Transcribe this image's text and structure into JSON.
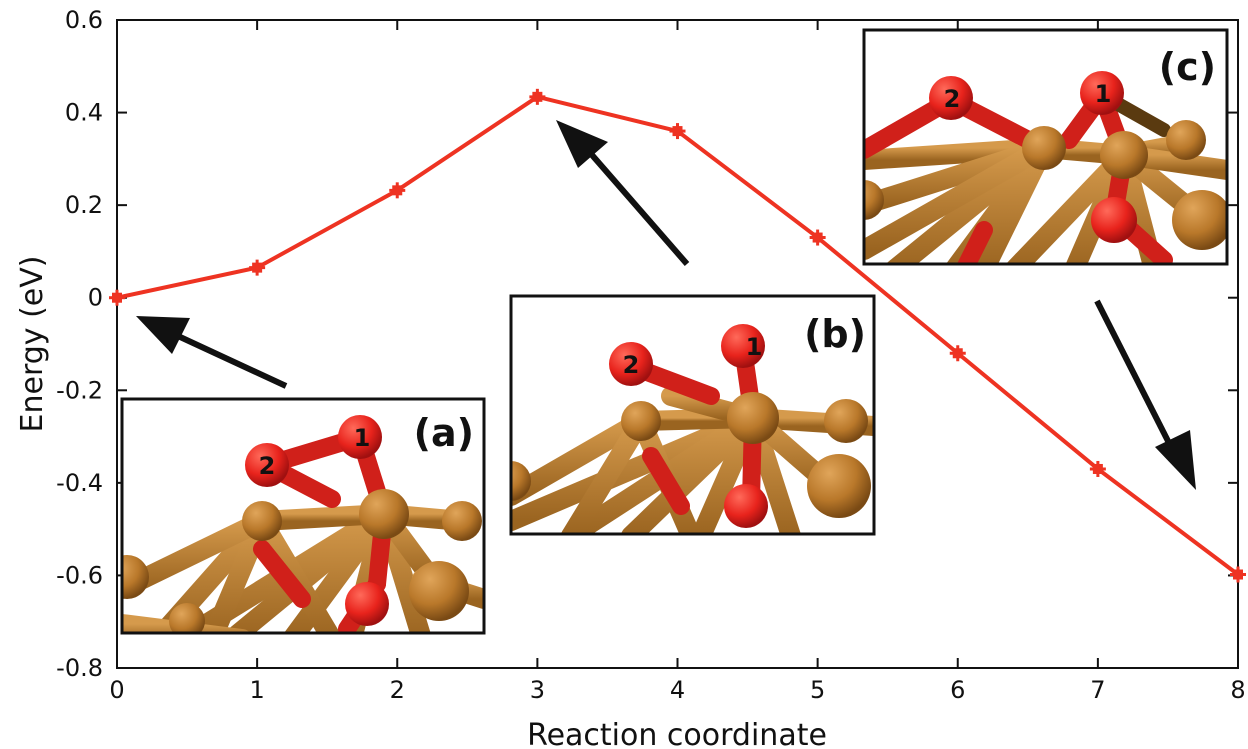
{
  "chart_data": {
    "type": "line",
    "title": "",
    "xlabel": "Reaction coordinate",
    "ylabel": "Energy (eV)",
    "xlim": [
      0,
      8
    ],
    "ylim": [
      -0.8,
      0.6
    ],
    "x_ticks": [
      "0",
      "1",
      "2",
      "3",
      "4",
      "5",
      "6",
      "7",
      "8"
    ],
    "y_ticks": [
      "-0.8",
      "-0.6",
      "-0.4",
      "-0.2",
      "0",
      "0.2",
      "0.4",
      "0.6"
    ],
    "grid": false,
    "series": [
      {
        "color": "#ee3322",
        "x": [
          0,
          1,
          2,
          3,
          4,
          5,
          6,
          7,
          8
        ],
        "y": [
          0.0,
          0.065,
          0.232,
          0.434,
          0.36,
          0.13,
          -0.12,
          -0.37,
          -0.598
        ]
      }
    ],
    "insets": [
      {
        "label": "(a)",
        "atom_labels": [
          "2",
          "1"
        ],
        "points_to_x": 0
      },
      {
        "label": "(b)",
        "atom_labels": [
          "2",
          "1"
        ],
        "points_to_x": 3
      },
      {
        "label": "(c)",
        "atom_labels": [
          "2",
          "1"
        ],
        "points_to_x": 8
      }
    ]
  },
  "colors": {
    "line": "#ee3322",
    "copper": "#b9782a",
    "copper_dark": "#8a5518",
    "oxygen": "#e8231c",
    "oxygen_dark": "#a01010",
    "arrow": "#111111"
  }
}
